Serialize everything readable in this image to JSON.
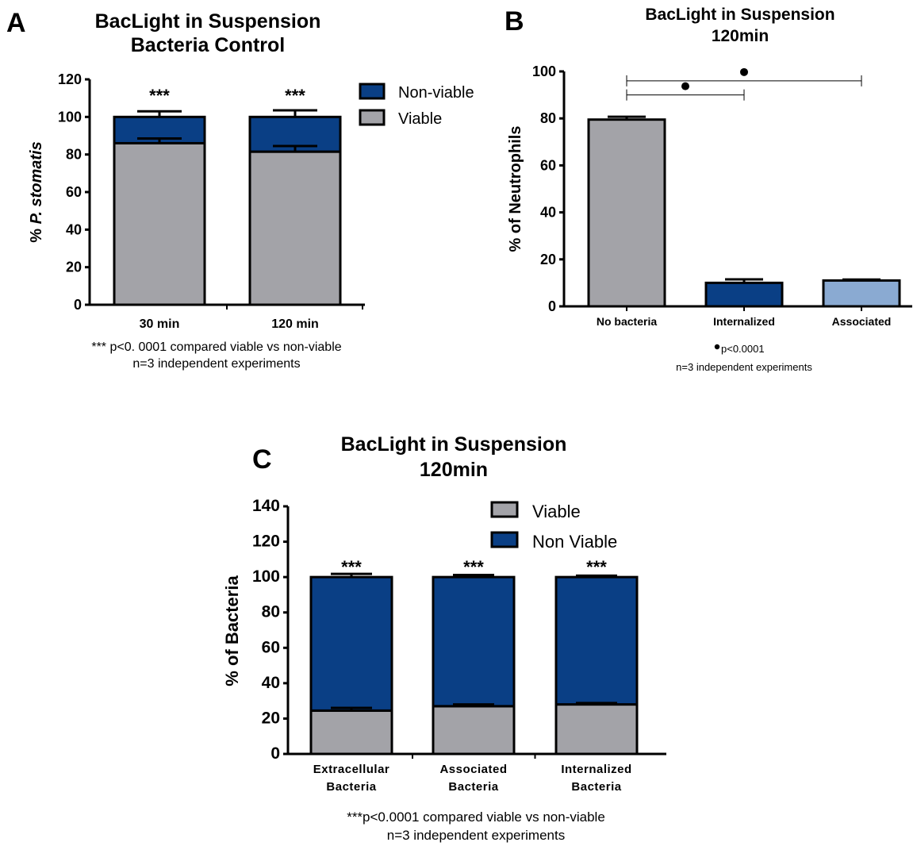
{
  "colors": {
    "viable": "#a3a3a8",
    "non_viable": "#0a3f85",
    "associated_light": "#8aaad2",
    "outline": "#000000"
  },
  "panels": {
    "A": {
      "letter": "A",
      "title_line1": "BacLight in Suspension",
      "title_line2": "Bacteria Control",
      "footnote_line1": "*** p<0. 0001 compared viable vs non-viable",
      "footnote_line2": "n=3 independent experiments"
    },
    "B": {
      "letter": "B",
      "title_line1": "BacLight in Suspension",
      "title_line2": "120min",
      "footnote_line1": "p<0.0001",
      "footnote_line2": "n=3 independent experiments"
    },
    "C": {
      "letter": "C",
      "title_line1": "BacLight in Suspension",
      "title_line2": "120min",
      "footnote_line1": "***p<0.0001 compared viable vs non-viable",
      "footnote_line2": "n=3 independent experiments"
    }
  },
  "chart_data": [
    {
      "panel": "A",
      "type": "bar",
      "stacked": true,
      "title": "BacLight in Suspension Bacteria Control",
      "ylabel_prefix": "% ",
      "ylabel_italic": "P. stomatis",
      "ylim": [
        0,
        120
      ],
      "yticks": [
        "0",
        "20",
        "40",
        "60",
        "80",
        "100",
        "120"
      ],
      "categories": [
        "30 min",
        "120 min"
      ],
      "series": [
        {
          "name": "Viable",
          "values": [
            86,
            81.5
          ],
          "errors": [
            2.5,
            3
          ]
        },
        {
          "name": "Non-viable",
          "values": [
            14,
            18.5
          ],
          "errors": [
            3,
            3.5
          ]
        }
      ],
      "legend_order": [
        "Non-viable",
        "Viable"
      ],
      "significance": [
        "***",
        "***"
      ]
    },
    {
      "panel": "B",
      "type": "bar",
      "stacked": false,
      "title": "BacLight in Suspension 120min",
      "ylabel": "% of Neutrophils",
      "ylim": [
        0,
        100
      ],
      "yticks": [
        "0",
        "20",
        "40",
        "60",
        "80",
        "100"
      ],
      "categories": [
        "No bacteria",
        "Internalized",
        "Associated"
      ],
      "values": [
        79.5,
        10,
        11
      ],
      "errors": [
        1.2,
        1.5,
        0.4
      ],
      "comparisons": [
        {
          "from": "No bacteria",
          "to": "Internalized",
          "level": 90
        },
        {
          "from": "No bacteria",
          "to": "Associated",
          "level": 96
        }
      ]
    },
    {
      "panel": "C",
      "type": "bar",
      "stacked": true,
      "title": "BacLight in Suspension 120min",
      "ylabel": "% of Bacteria",
      "ylim": [
        0,
        140
      ],
      "yticks": [
        "0",
        "20",
        "40",
        "60",
        "80",
        "100",
        "120",
        "140"
      ],
      "categories": [
        [
          "Extracellular",
          "Bacteria"
        ],
        [
          "Associated",
          "Bacteria"
        ],
        [
          "Internalized",
          "Bacteria"
        ]
      ],
      "series": [
        {
          "name": "Viable",
          "values": [
            24.5,
            27,
            28
          ],
          "errors": [
            1.5,
            1,
            0.8
          ]
        },
        {
          "name": "Non Viable",
          "values": [
            75.5,
            73,
            72
          ],
          "errors": [
            1.8,
            1.2,
            0.8
          ]
        }
      ],
      "legend_order": [
        "Viable",
        "Non Viable"
      ],
      "significance": [
        "***",
        "***",
        "***"
      ]
    }
  ]
}
